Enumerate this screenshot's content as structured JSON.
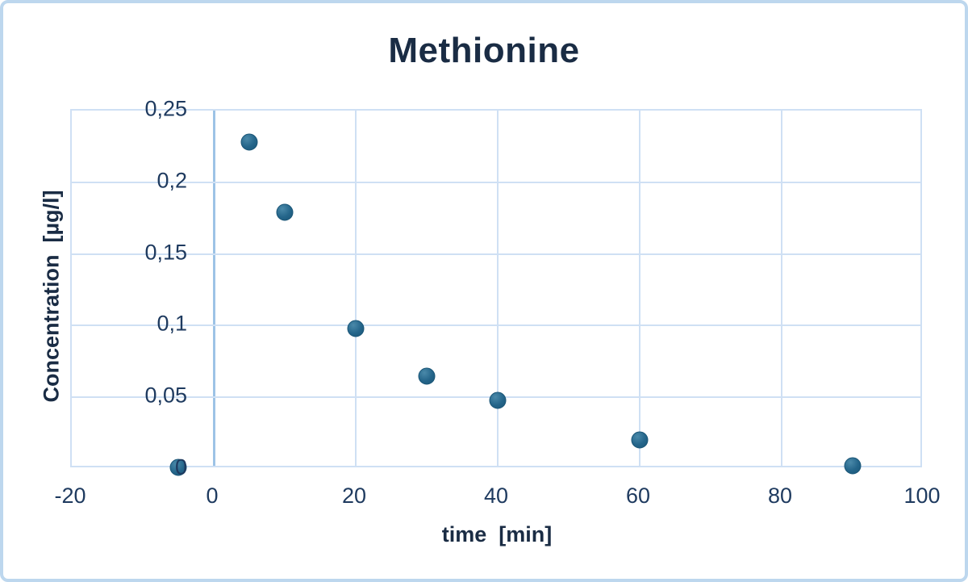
{
  "chart_data": {
    "type": "scatter",
    "title": "Methionine",
    "xlabel": "time  [min]",
    "ylabel": "Concentration  [µg/l]",
    "xlim": [
      -20,
      100
    ],
    "ylim": [
      0,
      0.25
    ],
    "grid": true,
    "legend_position": "none",
    "decimal_separator": ",",
    "x_ticks": [
      {
        "value": -20,
        "label": "-20"
      },
      {
        "value": 0,
        "label": "0"
      },
      {
        "value": 20,
        "label": "20"
      },
      {
        "value": 40,
        "label": "40"
      },
      {
        "value": 60,
        "label": "60"
      },
      {
        "value": 80,
        "label": "80"
      },
      {
        "value": 100,
        "label": "100"
      }
    ],
    "y_ticks": [
      {
        "value": 0,
        "label": "0"
      },
      {
        "value": 0.05,
        "label": "0,05"
      },
      {
        "value": 0.1,
        "label": "0,1"
      },
      {
        "value": 0.15,
        "label": "0,15"
      },
      {
        "value": 0.2,
        "label": "0,2"
      },
      {
        "value": 0.25,
        "label": "0,25"
      }
    ],
    "series": [
      {
        "name": "Methionine",
        "points": [
          {
            "x": -5,
            "y": 0.001
          },
          {
            "x": 5,
            "y": 0.228
          },
          {
            "x": 10,
            "y": 0.179
          },
          {
            "x": 20,
            "y": 0.098
          },
          {
            "x": 30,
            "y": 0.065
          },
          {
            "x": 40,
            "y": 0.048
          },
          {
            "x": 60,
            "y": 0.02
          },
          {
            "x": 90,
            "y": 0.002
          }
        ]
      }
    ],
    "colors": {
      "marker_fill": "#24658a",
      "marker_edge": "#1b5677",
      "marker_highlight": "#4a89a9",
      "gridline": "#cfe0f4",
      "zero_axis_line": "#9dc3e6",
      "plot_border": "#cfe0f4",
      "frame_border": "#bdd7ee",
      "title_text": "#1a2c44",
      "tick_text": "#1e3a5f",
      "background": "#ffffff"
    }
  }
}
